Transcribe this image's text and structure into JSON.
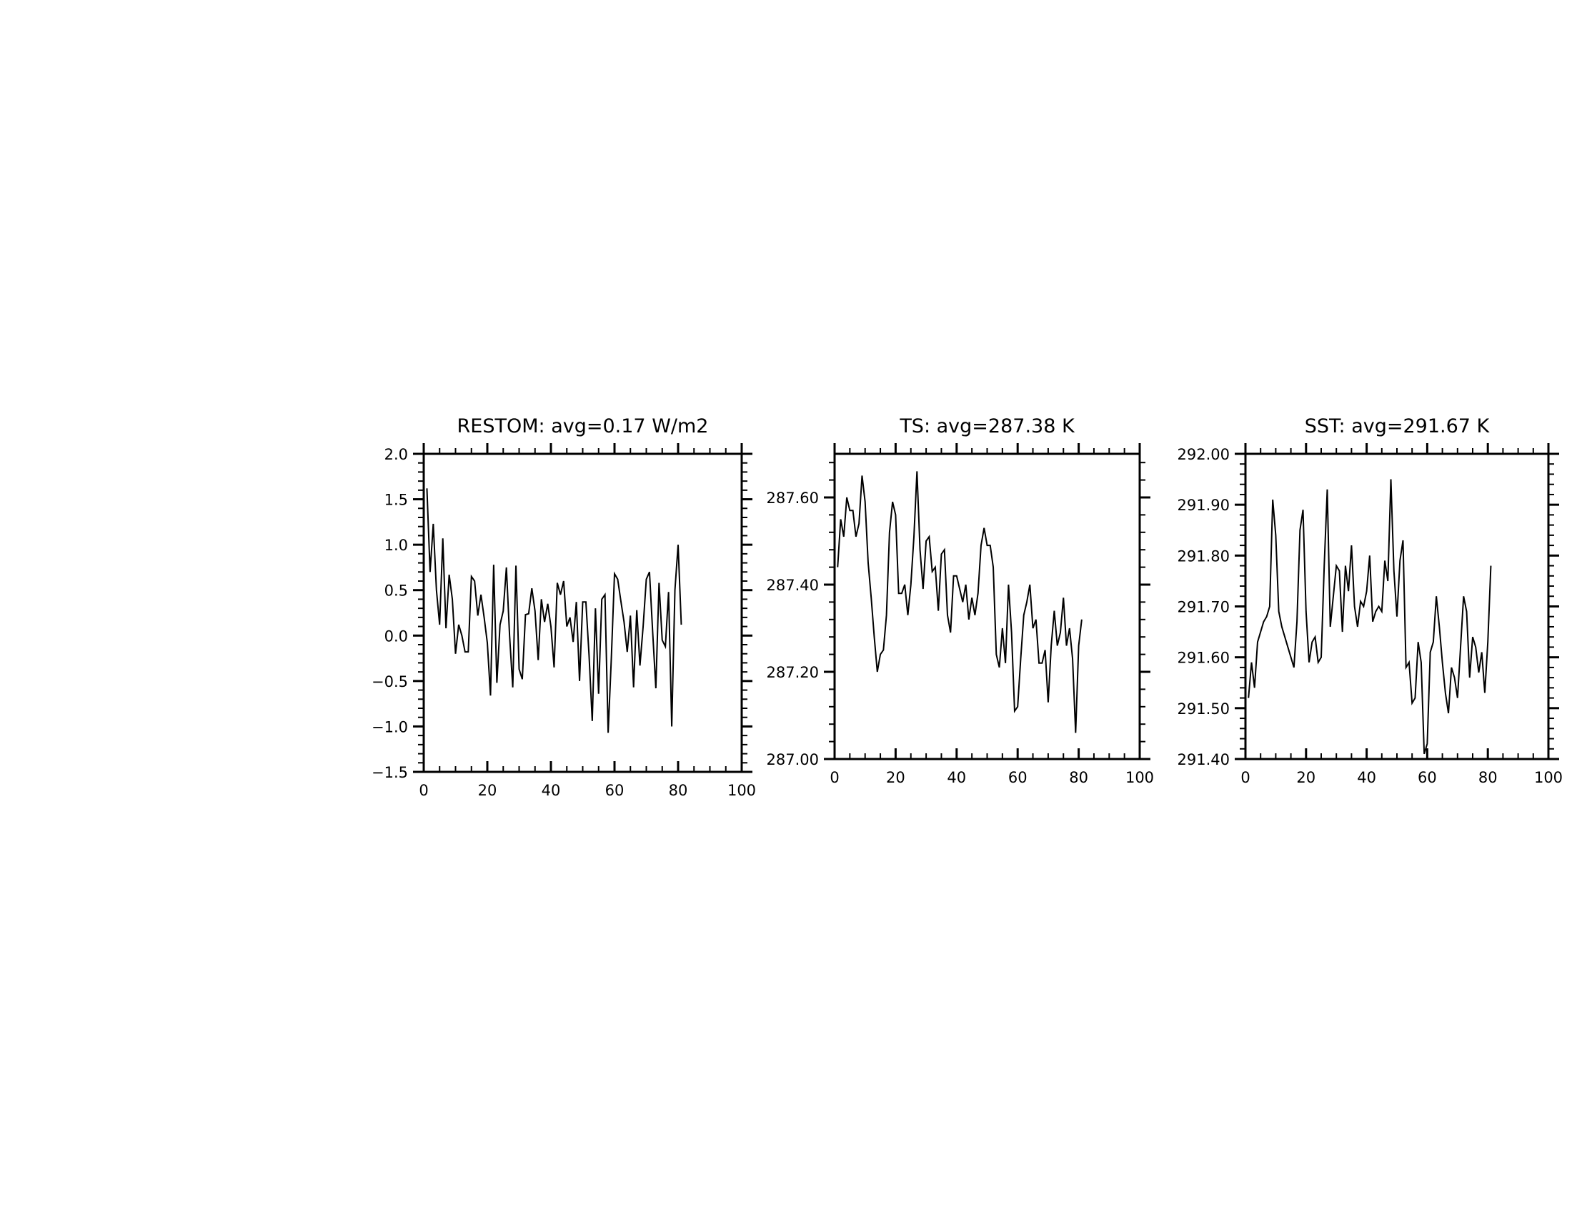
{
  "chart_data": [
    {
      "type": "line",
      "title": "RESTOM: avg=0.17 W/m2",
      "xlabel": "",
      "ylabel": "",
      "xlim": [
        0,
        100
      ],
      "ylim": [
        -1.5,
        2.0
      ],
      "xticks": [
        0,
        20,
        40,
        60,
        80,
        100
      ],
      "xtick_labels": [
        "0",
        "20",
        "40",
        "60",
        "80",
        "100"
      ],
      "xminor_step": 5,
      "yticks": [
        -1.5,
        -1.0,
        -0.5,
        0.0,
        0.5,
        1.0,
        1.5,
        2.0
      ],
      "ytick_labels": [
        "−1.5",
        "−1.0",
        "−0.5",
        "0.0",
        "0.5",
        "1.0",
        "1.5",
        "2.0"
      ],
      "yminor_step": 0.1,
      "grid": false,
      "x": [
        1,
        2,
        3,
        4,
        5,
        6,
        7,
        8,
        9,
        10,
        11,
        12,
        13,
        14,
        15,
        16,
        17,
        18,
        19,
        20,
        21,
        22,
        23,
        24,
        25,
        26,
        27,
        28,
        29,
        30,
        31,
        32,
        33,
        34,
        35,
        36,
        37,
        38,
        39,
        40,
        41,
        42,
        43,
        44,
        45,
        46,
        47,
        48,
        49,
        50,
        51,
        52,
        53,
        54,
        55,
        56,
        57,
        58,
        59,
        60,
        61,
        62,
        63,
        64,
        65,
        66,
        67,
        68,
        69,
        70,
        71,
        72,
        73,
        74,
        75,
        76,
        77,
        78,
        79,
        80,
        81
      ],
      "series": [
        {
          "values": [
            1.62,
            0.7,
            1.23,
            0.5,
            0.12,
            1.07,
            0.08,
            0.67,
            0.4,
            -0.2,
            0.12,
            0.0,
            -0.18,
            -0.18,
            0.65,
            0.6,
            0.22,
            0.45,
            0.2,
            -0.08,
            -0.66,
            0.78,
            -0.52,
            0.12,
            0.27,
            0.75,
            0.0,
            -0.57,
            0.77,
            -0.37,
            -0.48,
            0.23,
            0.24,
            0.52,
            0.27,
            -0.27,
            0.4,
            0.15,
            0.35,
            0.1,
            -0.35,
            0.58,
            0.45,
            0.6,
            0.1,
            0.2,
            -0.07,
            0.37,
            -0.5,
            0.37,
            0.37,
            -0.22,
            -0.94,
            0.3,
            -0.64,
            0.4,
            0.45,
            -1.07,
            -0.25,
            0.68,
            0.62,
            0.38,
            0.15,
            -0.18,
            0.22,
            -0.57,
            0.28,
            -0.33,
            0.1,
            0.62,
            0.7,
            0.04,
            -0.58,
            0.58,
            -0.05,
            -0.12,
            0.48,
            -1.0,
            0.5,
            1.0,
            0.12
          ]
        }
      ]
    },
    {
      "type": "line",
      "title": "TS: avg=287.38 K",
      "xlabel": "",
      "ylabel": "",
      "xlim": [
        0,
        100
      ],
      "ylim": [
        287.0,
        287.7
      ],
      "xticks": [
        0,
        20,
        40,
        60,
        80,
        100
      ],
      "xtick_labels": [
        "0",
        "20",
        "40",
        "60",
        "80",
        "100"
      ],
      "xminor_step": 5,
      "yticks": [
        287.0,
        287.2,
        287.4,
        287.6
      ],
      "ytick_labels": [
        "287.00",
        "287.20",
        "287.40",
        "287.60"
      ],
      "yminor_step": 0.04,
      "grid": false,
      "x": [
        1,
        2,
        3,
        4,
        5,
        6,
        7,
        8,
        9,
        10,
        11,
        12,
        13,
        14,
        15,
        16,
        17,
        18,
        19,
        20,
        21,
        22,
        23,
        24,
        25,
        26,
        27,
        28,
        29,
        30,
        31,
        32,
        33,
        34,
        35,
        36,
        37,
        38,
        39,
        40,
        41,
        42,
        43,
        44,
        45,
        46,
        47,
        48,
        49,
        50,
        51,
        52,
        53,
        54,
        55,
        56,
        57,
        58,
        59,
        60,
        61,
        62,
        63,
        64,
        65,
        66,
        67,
        68,
        69,
        70,
        71,
        72,
        73,
        74,
        75,
        76,
        77,
        78,
        79,
        80,
        81
      ],
      "series": [
        {
          "values": [
            287.44,
            287.55,
            287.51,
            287.6,
            287.57,
            287.57,
            287.51,
            287.54,
            287.65,
            287.59,
            287.45,
            287.37,
            287.28,
            287.2,
            287.24,
            287.25,
            287.33,
            287.52,
            287.59,
            287.56,
            287.38,
            287.38,
            287.4,
            287.33,
            287.4,
            287.51,
            287.66,
            287.48,
            287.39,
            287.5,
            287.51,
            287.43,
            287.44,
            287.34,
            287.47,
            287.48,
            287.33,
            287.29,
            287.42,
            287.42,
            287.39,
            287.36,
            287.4,
            287.32,
            287.37,
            287.33,
            287.38,
            287.49,
            287.53,
            287.49,
            287.49,
            287.44,
            287.24,
            287.21,
            287.3,
            287.22,
            287.4,
            287.29,
            287.11,
            287.12,
            287.23,
            287.33,
            287.36,
            287.4,
            287.3,
            287.32,
            287.22,
            287.22,
            287.25,
            287.13,
            287.26,
            287.34,
            287.26,
            287.29,
            287.37,
            287.26,
            287.3,
            287.23,
            287.06,
            287.26,
            287.32
          ]
        }
      ]
    },
    {
      "type": "line",
      "title": "SST: avg=291.67 K",
      "xlabel": "",
      "ylabel": "",
      "xlim": [
        0,
        100
      ],
      "ylim": [
        291.4,
        292.0
      ],
      "xticks": [
        0,
        20,
        40,
        60,
        80,
        100
      ],
      "xtick_labels": [
        "0",
        "20",
        "40",
        "60",
        "80",
        "100"
      ],
      "xminor_step": 5,
      "yticks": [
        291.4,
        291.5,
        291.6,
        291.7,
        291.8,
        291.9,
        292.0
      ],
      "ytick_labels": [
        "291.40",
        "291.50",
        "291.60",
        "291.70",
        "291.80",
        "291.90",
        "292.00"
      ],
      "yminor_step": 0.02,
      "grid": false,
      "x": [
        1,
        2,
        3,
        4,
        5,
        6,
        7,
        8,
        9,
        10,
        11,
        12,
        13,
        14,
        15,
        16,
        17,
        18,
        19,
        20,
        21,
        22,
        23,
        24,
        25,
        26,
        27,
        28,
        29,
        30,
        31,
        32,
        33,
        34,
        35,
        36,
        37,
        38,
        39,
        40,
        41,
        42,
        43,
        44,
        45,
        46,
        47,
        48,
        49,
        50,
        51,
        52,
        53,
        54,
        55,
        56,
        57,
        58,
        59,
        60,
        61,
        62,
        63,
        64,
        65,
        66,
        67,
        68,
        69,
        70,
        71,
        72,
        73,
        74,
        75,
        76,
        77,
        78,
        79,
        80,
        81
      ],
      "series": [
        {
          "values": [
            291.52,
            291.59,
            291.54,
            291.63,
            291.65,
            291.67,
            291.68,
            291.7,
            291.91,
            291.84,
            291.69,
            291.66,
            291.64,
            291.62,
            291.6,
            291.58,
            291.67,
            291.85,
            291.89,
            291.69,
            291.59,
            291.63,
            291.64,
            291.59,
            291.6,
            291.78,
            291.93,
            291.66,
            291.72,
            291.78,
            291.77,
            291.65,
            291.78,
            291.73,
            291.82,
            291.7,
            291.66,
            291.71,
            291.7,
            291.73,
            291.8,
            291.67,
            291.69,
            291.7,
            291.69,
            291.79,
            291.75,
            291.95,
            291.77,
            291.68,
            291.79,
            291.83,
            291.58,
            291.59,
            291.51,
            291.52,
            291.63,
            291.59,
            291.41,
            291.43,
            291.61,
            291.63,
            291.72,
            291.66,
            291.59,
            291.53,
            291.49,
            291.58,
            291.56,
            291.52,
            291.62,
            291.72,
            291.69,
            291.56,
            291.64,
            291.62,
            291.57,
            291.61,
            291.53,
            291.63,
            291.78
          ]
        }
      ]
    }
  ]
}
